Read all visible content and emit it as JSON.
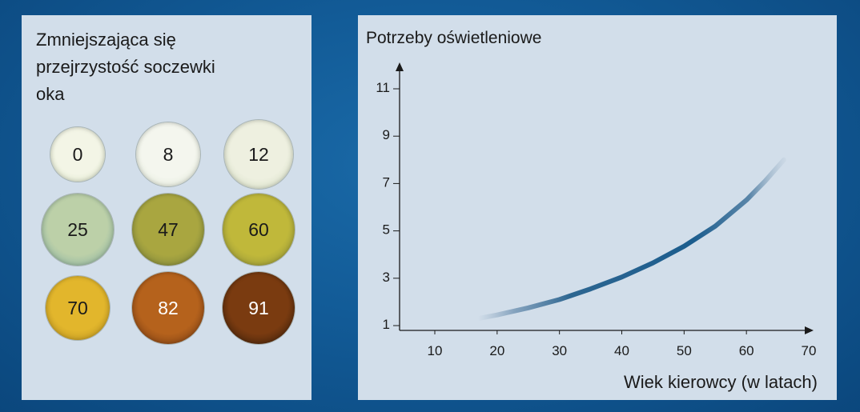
{
  "left_panel": {
    "title_lines": [
      "Zmniejszająca się",
      "przejrzystość soczewki",
      "oka"
    ],
    "lenses": [
      {
        "label": "0",
        "color": "#f3f5e6",
        "edge": "#d8e2c4"
      },
      {
        "label": "8",
        "color": "#f4f6ee",
        "edge": "#dde6d4"
      },
      {
        "label": "12",
        "color": "#eef0e0",
        "edge": "#cdd8bc"
      },
      {
        "label": "25",
        "color": "#bcd0a8",
        "edge": "#7aa8a0"
      },
      {
        "label": "47",
        "color": "#a9a640",
        "edge": "#6d7a3a"
      },
      {
        "label": "60",
        "color": "#c0b83a",
        "edge": "#858a3a"
      },
      {
        "label": "70",
        "color": "#e2b62c",
        "edge": "#b08a1e"
      },
      {
        "label": "82",
        "color": "#b5621c",
        "edge": "#6b3412"
      },
      {
        "label": "91",
        "color": "#7a3b10",
        "edge": "#2e1a0a"
      }
    ]
  },
  "chart_data": {
    "type": "line",
    "title": "Potrzeby oświetleniowe",
    "xlabel": "Wiek kierowcy (w latach)",
    "ylabel": "",
    "x_ticks": [
      10,
      20,
      30,
      40,
      50,
      60,
      70
    ],
    "y_ticks": [
      1,
      3,
      5,
      7,
      9,
      11
    ],
    "xlim": [
      3,
      75
    ],
    "ylim": [
      1,
      12
    ],
    "grid": false,
    "series": [
      {
        "color": "#1f5f8f",
        "x": [
          17,
          20,
          25,
          30,
          35,
          40,
          45,
          50,
          55,
          60,
          63,
          66
        ],
        "y": [
          1.3,
          1.45,
          1.75,
          2.1,
          2.55,
          3.05,
          3.65,
          4.35,
          5.2,
          6.3,
          7.1,
          8.0
        ]
      }
    ]
  }
}
